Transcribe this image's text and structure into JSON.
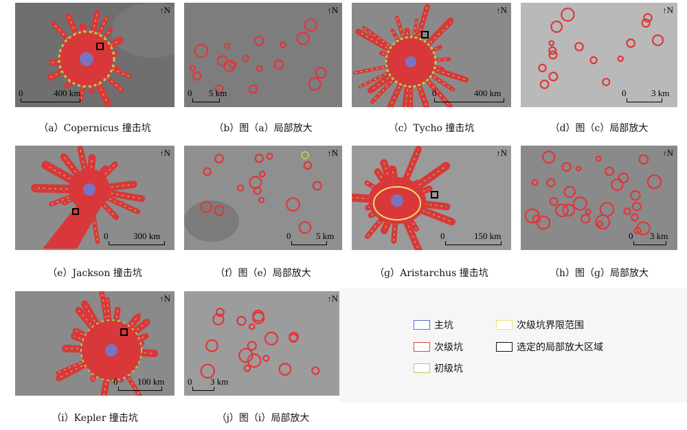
{
  "north_label": "N",
  "panels": [
    {
      "id": "a",
      "scale": "400 km",
      "caption": "（a）Copernicus 撞击坑"
    },
    {
      "id": "b",
      "scale": "5 km",
      "caption": "（b）图（a）局部放大"
    },
    {
      "id": "c",
      "scale": "400 km",
      "caption": "（c）Tycho 撞击坑"
    },
    {
      "id": "d",
      "scale": "3 km",
      "caption": "（d）图（c）局部放大"
    },
    {
      "id": "e",
      "scale": "300 km",
      "caption": "（e）Jackson 撞击坑"
    },
    {
      "id": "f",
      "scale": "5 km",
      "caption": "（f）图（e）局部放大"
    },
    {
      "id": "g",
      "scale": "150 km",
      "caption": "（g）Aristarchus 撞击坑"
    },
    {
      "id": "h",
      "scale": "3 km",
      "caption": "（h）图（g）局部放大"
    },
    {
      "id": "i",
      "scale": "100 km",
      "caption": "（i）Kepler 撞击坑"
    },
    {
      "id": "j",
      "scale": "3 km",
      "caption": "（j）图（i）局部放大"
    }
  ],
  "scale_zero": "0",
  "legend": {
    "items": [
      {
        "label": "主坑",
        "color": "#5a6fd0"
      },
      {
        "label": "次级坑",
        "color": "#e0453a"
      },
      {
        "label": "初级坑",
        "color": "#a9d35a"
      },
      {
        "label": "次级坑界限范围",
        "color": "#f0e070"
      },
      {
        "label": "选定的局部放大区域",
        "color": "#111111"
      }
    ]
  }
}
